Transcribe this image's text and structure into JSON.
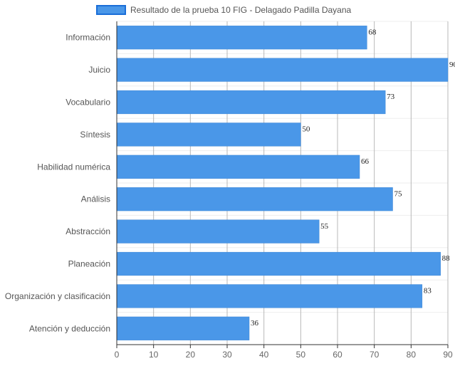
{
  "chart_data": {
    "type": "bar",
    "orientation": "horizontal",
    "categories": [
      "Información",
      "Juicio",
      "Vocabulario",
      "Síntesis",
      "Habilidad numérica",
      "Análisis",
      "Abstracción",
      "Planeación",
      "Organización y clasificación",
      "Atención y deducción"
    ],
    "series": [
      {
        "name": "Resultado de la prueba 10 FIG - Delagado Padilla Dayana",
        "values": [
          68,
          90,
          73,
          50,
          66,
          75,
          55,
          88,
          83,
          36
        ],
        "color": "#4a97e8"
      }
    ],
    "xlim": [
      0,
      90
    ],
    "x_ticks": [
      0,
      10,
      20,
      30,
      40,
      50,
      60,
      70,
      80,
      90
    ],
    "grid": true,
    "legend_position": "top",
    "data_labels": true,
    "title": "",
    "xlabel": "",
    "ylabel": ""
  }
}
